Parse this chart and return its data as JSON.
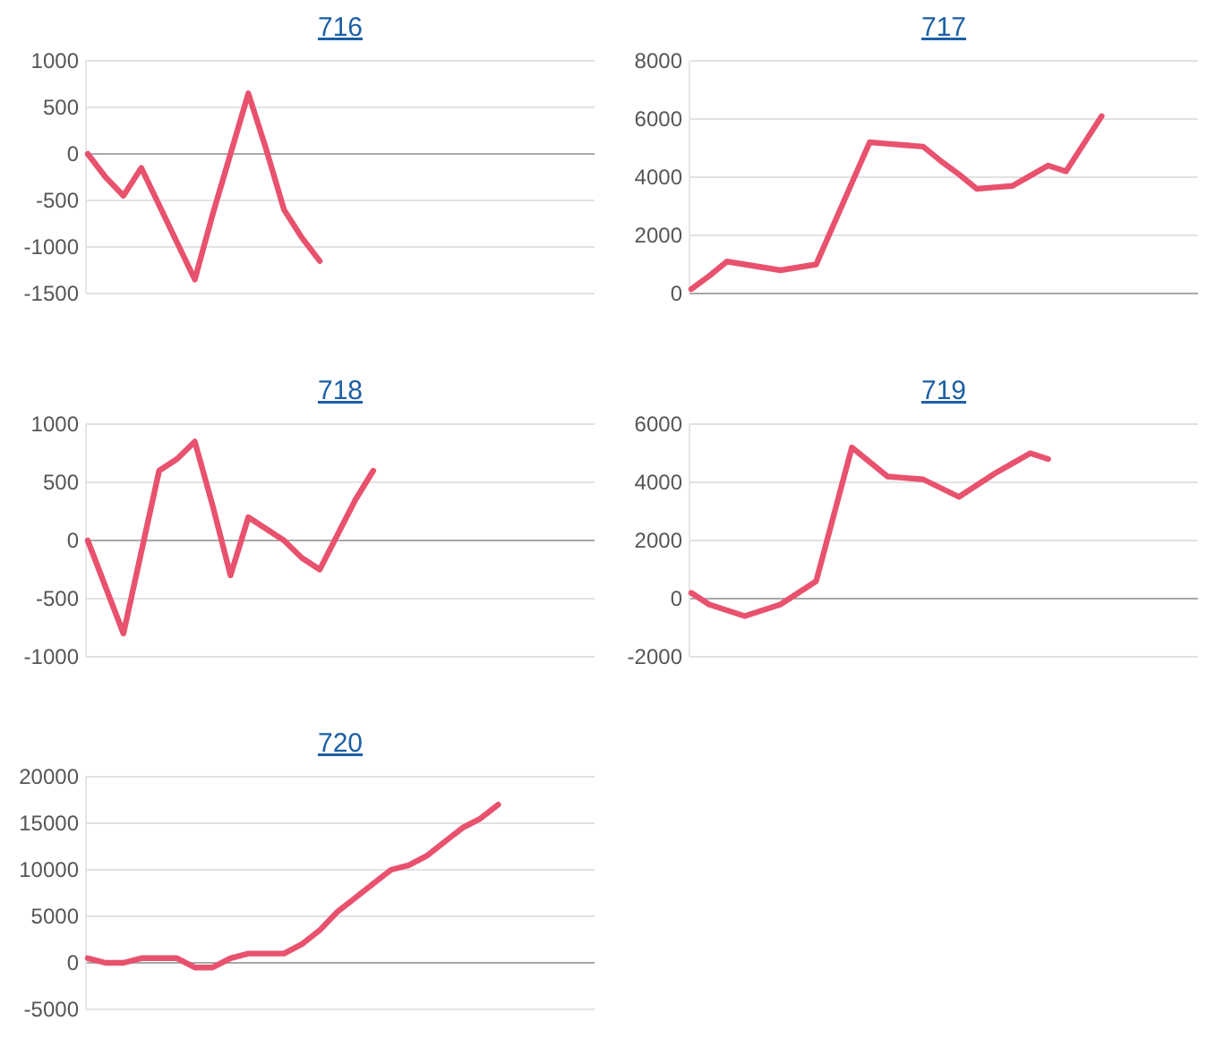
{
  "chart_data": [
    {
      "type": "line",
      "title": "716",
      "categories": [
        null,
        null,
        null,
        null,
        null,
        null,
        null,
        null,
        null,
        null,
        null,
        null,
        null,
        null,
        null,
        null,
        null,
        null,
        null,
        null,
        null,
        null,
        null,
        null,
        null,
        null,
        null,
        null,
        null
      ],
      "ylim": [
        -1500,
        1000
      ],
      "yticks": [
        -1500,
        -1000,
        -500,
        0,
        500,
        1000
      ],
      "grid": "y",
      "line_style": "solid",
      "series": [
        {
          "color": "#e8526e",
          "values": [
            0,
            -250,
            -450,
            -150,
            -550,
            -950,
            -1350,
            -650,
            0,
            650,
            50,
            -600,
            -900,
            -1150,
            null,
            null,
            null,
            null,
            null,
            null,
            null,
            null,
            null,
            null,
            null,
            null,
            null,
            null,
            null
          ]
        }
      ]
    },
    {
      "type": "line",
      "title": "717",
      "categories": [
        null,
        null,
        null,
        null,
        null,
        null,
        null,
        null,
        null,
        null,
        null,
        null,
        null,
        null,
        null,
        null,
        null,
        null,
        null,
        null,
        null,
        null,
        null,
        null,
        null,
        null,
        null,
        null,
        null
      ],
      "ylim": [
        0,
        8000
      ],
      "yticks": [
        0,
        2000,
        4000,
        6000,
        8000
      ],
      "grid": "y",
      "line_style": "solid",
      "series": [
        {
          "color": "#e8526e",
          "values": [
            150,
            600,
            1100,
            1000,
            900,
            800,
            900,
            1000,
            2400,
            3800,
            5200,
            5150,
            5100,
            5050,
            4550,
            4100,
            3600,
            3650,
            3700,
            4050,
            4400,
            4200,
            5150,
            6100,
            null,
            null,
            null,
            null,
            null
          ]
        }
      ]
    },
    {
      "type": "line",
      "title": "718",
      "categories": [
        null,
        null,
        null,
        null,
        null,
        null,
        null,
        null,
        null,
        null,
        null,
        null,
        null,
        null,
        null,
        null,
        null,
        null,
        null,
        null,
        null,
        null,
        null,
        null,
        null,
        null,
        null,
        null,
        null
      ],
      "ylim": [
        -1000,
        1000
      ],
      "yticks": [
        -1000,
        -500,
        0,
        500,
        1000
      ],
      "grid": "y",
      "line_style": "solid",
      "series": [
        {
          "color": "#e8526e",
          "values": [
            0,
            -400,
            -800,
            -100,
            600,
            700,
            850,
            300,
            -300,
            200,
            100,
            0,
            -150,
            -250,
            50,
            350,
            600,
            null,
            null,
            null,
            null,
            null,
            null,
            null,
            null,
            null,
            null,
            null,
            null
          ]
        }
      ]
    },
    {
      "type": "line",
      "title": "719",
      "categories": [
        null,
        null,
        null,
        null,
        null,
        null,
        null,
        null,
        null,
        null,
        null,
        null,
        null,
        null,
        null,
        null,
        null,
        null,
        null,
        null,
        null,
        null,
        null,
        null,
        null,
        null,
        null,
        null,
        null
      ],
      "ylim": [
        -2000,
        6000
      ],
      "yticks": [
        -2000,
        0,
        2000,
        4000,
        6000
      ],
      "grid": "y",
      "line_style": "solid",
      "series": [
        {
          "color": "#e8526e",
          "values": [
            200,
            -200,
            -400,
            -600,
            -400,
            -200,
            200,
            600,
            2900,
            5200,
            4700,
            4200,
            4150,
            4100,
            3800,
            3500,
            3900,
            4300,
            4650,
            5000,
            4800,
            null,
            null,
            null,
            null,
            null,
            null,
            null,
            null
          ]
        }
      ]
    },
    {
      "type": "line",
      "title": "720",
      "categories": [
        null,
        null,
        null,
        null,
        null,
        null,
        null,
        null,
        null,
        null,
        null,
        null,
        null,
        null,
        null,
        null,
        null,
        null,
        null,
        null,
        null,
        null,
        null,
        null,
        null,
        null,
        null,
        null,
        null
      ],
      "ylim": [
        -5000,
        20000
      ],
      "yticks": [
        -5000,
        0,
        5000,
        10000,
        15000,
        20000
      ],
      "grid": "y",
      "line_style": "solid",
      "series": [
        {
          "color": "#e8526e",
          "values": [
            500,
            0,
            0,
            500,
            500,
            500,
            -500,
            -500,
            500,
            1000,
            1000,
            1000,
            2000,
            3500,
            5500,
            7000,
            8500,
            10000,
            10500,
            11500,
            13000,
            14500,
            15500,
            17000,
            null,
            null,
            null,
            null,
            null
          ]
        }
      ]
    }
  ]
}
